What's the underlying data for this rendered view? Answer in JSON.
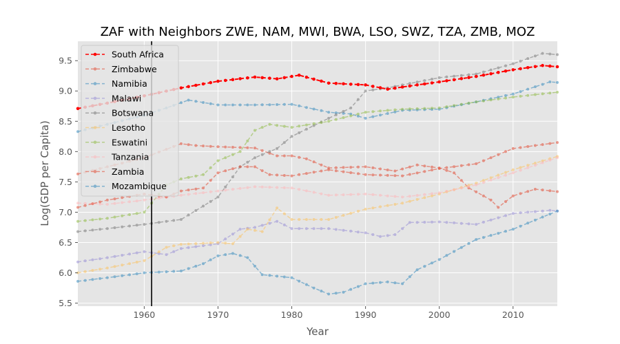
{
  "chart_data": {
    "type": "line",
    "title": "ZAF with Neighbors ZWE, NAM, MWI, BWA, LSO, SWZ, TZA, ZMB, MOZ",
    "xlabel": "Year",
    "ylabel": "Log(GDP per Capita)",
    "xlim": [
      1951,
      2016
    ],
    "ylim": [
      5.45,
      9.82
    ],
    "xticks": [
      "1960",
      "1970",
      "1980",
      "1990",
      "2000",
      "2010"
    ],
    "yticks": [
      "5.5",
      "6.0",
      "6.5",
      "7.0",
      "7.5",
      "8.0",
      "8.5",
      "9.0",
      "9.5"
    ],
    "vline_x": 1961,
    "grid": true,
    "legend_position": "upper-left",
    "series": [
      {
        "name": "South Africa",
        "color": "#ff0000",
        "highlight": true,
        "x": [
          1951,
          1955,
          1960,
          1965,
          1970,
          1975,
          1978,
          1981,
          1985,
          1990,
          1993,
          1997,
          2000,
          2005,
          2010,
          2014,
          2016
        ],
        "y": [
          8.71,
          8.8,
          8.92,
          9.05,
          9.16,
          9.23,
          9.2,
          9.26,
          9.13,
          9.1,
          9.03,
          9.1,
          9.15,
          9.24,
          9.35,
          9.42,
          9.4
        ]
      },
      {
        "name": "Zimbabwe",
        "color": "#e24a33",
        "x": [
          1951,
          1955,
          1960,
          1965,
          1967,
          1970,
          1975,
          1978,
          1980,
          1982,
          1985,
          1990,
          1994,
          1997,
          2000,
          2002,
          2004,
          2006,
          2007,
          2008,
          2010,
          2013,
          2016
        ],
        "y": [
          7.63,
          7.75,
          7.9,
          8.13,
          8.1,
          8.08,
          8.06,
          7.93,
          7.93,
          7.88,
          7.73,
          7.75,
          7.68,
          7.78,
          7.73,
          7.65,
          7.4,
          7.27,
          7.2,
          7.08,
          7.27,
          7.38,
          7.34
        ]
      },
      {
        "name": "Namibia",
        "color": "#348abd",
        "x": [
          1951,
          1955,
          1960,
          1963,
          1966,
          1970,
          1975,
          1980,
          1985,
          1988,
          1990,
          1995,
          2000,
          2005,
          2010,
          2015,
          2016
        ],
        "y": [
          8.33,
          8.45,
          8.6,
          8.72,
          8.85,
          8.77,
          8.77,
          8.78,
          8.65,
          8.62,
          8.55,
          8.68,
          8.7,
          8.82,
          8.95,
          9.15,
          9.14
        ]
      },
      {
        "name": "Malawi",
        "color": "#988ed5",
        "x": [
          1951,
          1955,
          1960,
          1963,
          1965,
          1970,
          1973,
          1975,
          1978,
          1980,
          1985,
          1990,
          1992,
          1994,
          1996,
          2000,
          2005,
          2010,
          2015,
          2016
        ],
        "y": [
          6.18,
          6.25,
          6.35,
          6.3,
          6.4,
          6.48,
          6.72,
          6.75,
          6.85,
          6.73,
          6.73,
          6.66,
          6.6,
          6.63,
          6.83,
          6.84,
          6.8,
          6.98,
          7.03,
          7.02
        ]
      },
      {
        "name": "Botswana",
        "color": "#777777",
        "x": [
          1951,
          1955,
          1960,
          1965,
          1970,
          1973,
          1975,
          1978,
          1980,
          1985,
          1988,
          1990,
          1993,
          1995,
          2000,
          2005,
          2010,
          2014,
          2016
        ],
        "y": [
          6.68,
          6.73,
          6.8,
          6.88,
          7.25,
          7.75,
          7.9,
          8.05,
          8.25,
          8.55,
          8.72,
          9.0,
          9.05,
          9.1,
          9.22,
          9.28,
          9.45,
          9.62,
          9.6
        ]
      },
      {
        "name": "Lesotho",
        "color": "#fbc15e",
        "x": [
          1951,
          1955,
          1960,
          1963,
          1965,
          1970,
          1972,
          1974,
          1976,
          1978,
          1980,
          1985,
          1990,
          1995,
          2000,
          2005,
          2010,
          2016
        ],
        "y": [
          6.0,
          6.08,
          6.2,
          6.42,
          6.47,
          6.5,
          6.48,
          6.72,
          6.68,
          7.07,
          6.88,
          6.88,
          7.05,
          7.15,
          7.3,
          7.48,
          7.7,
          7.92
        ]
      },
      {
        "name": "Eswatini",
        "color": "#8eba42",
        "x": [
          1951,
          1955,
          1960,
          1963,
          1965,
          1968,
          1970,
          1973,
          1975,
          1977,
          1980,
          1985,
          1990,
          1995,
          2000,
          2005,
          2010,
          2016
        ],
        "y": [
          6.85,
          6.9,
          7.0,
          7.45,
          7.55,
          7.62,
          7.85,
          8.0,
          8.35,
          8.45,
          8.4,
          8.5,
          8.65,
          8.7,
          8.72,
          8.82,
          8.9,
          8.98
        ]
      },
      {
        "name": "Tanzania",
        "color": "#ffb5b8",
        "x": [
          1951,
          1955,
          1960,
          1965,
          1970,
          1975,
          1980,
          1985,
          1990,
          1995,
          2000,
          2005,
          2010,
          2016
        ],
        "y": [
          7.15,
          7.13,
          7.2,
          7.28,
          7.35,
          7.42,
          7.4,
          7.28,
          7.3,
          7.25,
          7.32,
          7.45,
          7.65,
          7.9
        ]
      },
      {
        "name": "Zambia",
        "color": "#e24a33",
        "x": [
          1951,
          1955,
          1960,
          1963,
          1965,
          1968,
          1970,
          1973,
          1975,
          1977,
          1980,
          1985,
          1990,
          1995,
          2000,
          2005,
          2010,
          2016
        ],
        "y": [
          7.08,
          7.2,
          7.3,
          7.25,
          7.35,
          7.4,
          7.65,
          7.75,
          7.75,
          7.62,
          7.6,
          7.7,
          7.62,
          7.6,
          7.72,
          7.8,
          8.05,
          8.15
        ]
      },
      {
        "name": "Mozambique",
        "color": "#348abd",
        "x": [
          1951,
          1955,
          1960,
          1965,
          1968,
          1970,
          1972,
          1974,
          1976,
          1980,
          1983,
          1985,
          1987,
          1990,
          1993,
          1995,
          1997,
          2000,
          2005,
          2010,
          2016
        ],
        "y": [
          5.86,
          5.92,
          6.0,
          6.03,
          6.15,
          6.28,
          6.32,
          6.25,
          5.97,
          5.92,
          5.75,
          5.65,
          5.68,
          5.82,
          5.85,
          5.82,
          6.05,
          6.22,
          6.55,
          6.72,
          7.02
        ]
      }
    ]
  }
}
